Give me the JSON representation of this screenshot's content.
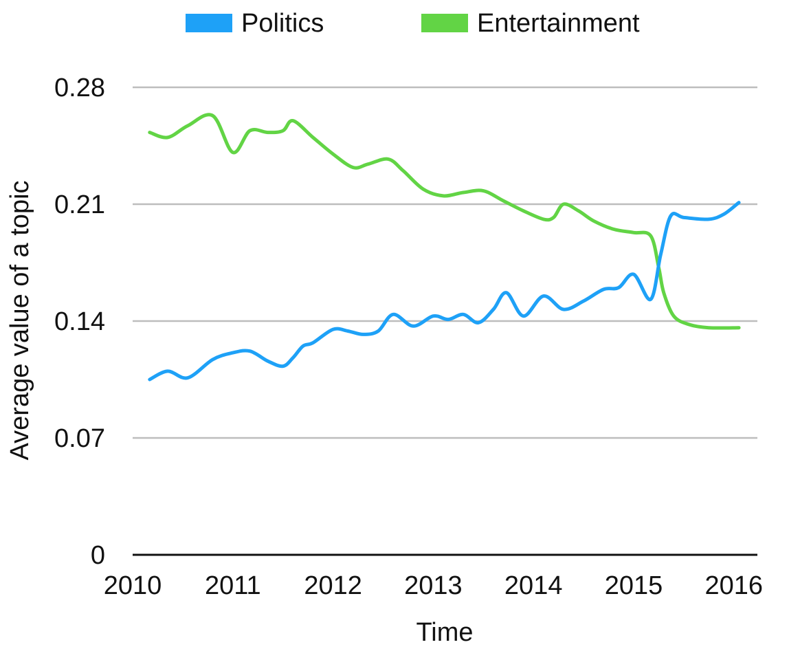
{
  "chart_data": {
    "type": "line",
    "title": "",
    "xlabel": "Time",
    "ylabel": "Average value of a topic",
    "xlim": [
      2010,
      2016.25
    ],
    "ylim": [
      0,
      0.28
    ],
    "x_ticks": [
      2010,
      2011,
      2012,
      2013,
      2014,
      2015,
      2016
    ],
    "x_tick_labels": [
      "2010",
      "2011",
      "2012",
      "2013",
      "2014",
      "2015",
      "2016"
    ],
    "y_ticks": [
      0,
      0.07,
      0.14,
      0.21,
      0.28
    ],
    "y_tick_labels": [
      "0",
      "0.07",
      "0.14",
      "0.21",
      "0.28"
    ],
    "grid": true,
    "legend": {
      "position": "top-center"
    },
    "series": [
      {
        "name": "Politics",
        "color": "#1ea1f7",
        "points": [
          [
            2010.17,
            0.105
          ],
          [
            2010.35,
            0.11
          ],
          [
            2010.55,
            0.106
          ],
          [
            2010.8,
            0.117
          ],
          [
            2011.0,
            0.121
          ],
          [
            2011.17,
            0.122
          ],
          [
            2011.35,
            0.116
          ],
          [
            2011.5,
            0.113
          ],
          [
            2011.6,
            0.118
          ],
          [
            2011.7,
            0.125
          ],
          [
            2011.8,
            0.127
          ],
          [
            2012.0,
            0.135
          ],
          [
            2012.15,
            0.134
          ],
          [
            2012.3,
            0.132
          ],
          [
            2012.45,
            0.134
          ],
          [
            2012.6,
            0.144
          ],
          [
            2012.8,
            0.137
          ],
          [
            2013.0,
            0.143
          ],
          [
            2013.15,
            0.141
          ],
          [
            2013.3,
            0.144
          ],
          [
            2013.45,
            0.139
          ],
          [
            2013.6,
            0.147
          ],
          [
            2013.73,
            0.157
          ],
          [
            2013.9,
            0.143
          ],
          [
            2014.1,
            0.155
          ],
          [
            2014.3,
            0.147
          ],
          [
            2014.5,
            0.152
          ],
          [
            2014.7,
            0.159
          ],
          [
            2014.85,
            0.16
          ],
          [
            2015.0,
            0.168
          ],
          [
            2015.17,
            0.153
          ],
          [
            2015.27,
            0.18
          ],
          [
            2015.37,
            0.203
          ],
          [
            2015.5,
            0.202
          ],
          [
            2015.75,
            0.201
          ],
          [
            2015.9,
            0.204
          ],
          [
            2016.05,
            0.211
          ]
        ]
      },
      {
        "name": "Entertainment",
        "color": "#62d445",
        "points": [
          [
            2010.17,
            0.253
          ],
          [
            2010.35,
            0.25
          ],
          [
            2010.55,
            0.257
          ],
          [
            2010.8,
            0.263
          ],
          [
            2011.0,
            0.241
          ],
          [
            2011.17,
            0.254
          ],
          [
            2011.35,
            0.253
          ],
          [
            2011.5,
            0.254
          ],
          [
            2011.6,
            0.26
          ],
          [
            2011.8,
            0.25
          ],
          [
            2012.0,
            0.24
          ],
          [
            2012.2,
            0.232
          ],
          [
            2012.35,
            0.234
          ],
          [
            2012.55,
            0.237
          ],
          [
            2012.7,
            0.23
          ],
          [
            2012.9,
            0.219
          ],
          [
            2013.1,
            0.215
          ],
          [
            2013.3,
            0.217
          ],
          [
            2013.5,
            0.218
          ],
          [
            2013.7,
            0.212
          ],
          [
            2013.9,
            0.206
          ],
          [
            2014.1,
            0.201
          ],
          [
            2014.2,
            0.202
          ],
          [
            2014.3,
            0.21
          ],
          [
            2014.45,
            0.206
          ],
          [
            2014.6,
            0.2
          ],
          [
            2014.8,
            0.195
          ],
          [
            2015.0,
            0.193
          ],
          [
            2015.17,
            0.191
          ],
          [
            2015.25,
            0.172
          ],
          [
            2015.3,
            0.157
          ],
          [
            2015.4,
            0.143
          ],
          [
            2015.55,
            0.138
          ],
          [
            2015.75,
            0.136
          ],
          [
            2016.05,
            0.136
          ]
        ]
      }
    ]
  }
}
